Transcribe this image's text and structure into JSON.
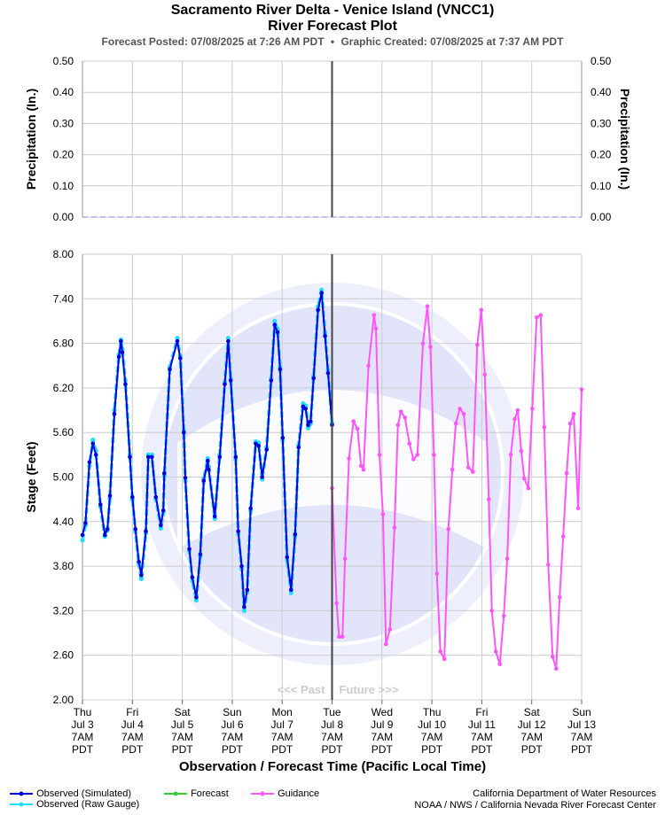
{
  "title_line1": "Sacramento River Delta - Venice Island (VNCC1)",
  "title_line2": "River Forecast Plot",
  "posted": "Forecast Posted: 07/08/2025 at 7:26 AM PDT",
  "created": "Graphic Created: 07/08/2025 at 7:37 AM PDT",
  "separator": "•",
  "past_label": "<<< Past",
  "future_label": "Future >>>",
  "legend": {
    "observed_sim": "Observed (Simulated)",
    "observed_raw": "Observed (Raw Gauge)",
    "forecast": "Forecast",
    "guidance": "Guidance"
  },
  "credits": {
    "line1": "California Department of Water Resources",
    "line2": "NOAA / NWS / California Nevada River Forecast Center"
  },
  "colors": {
    "observed_sim": "#0000dd",
    "observed_raw": "#22ddff",
    "forecast": "#33cc33",
    "guidance": "#ff55ff",
    "grid": "#cccccc",
    "now_line": "#444444"
  },
  "chart_data": [
    {
      "type": "line",
      "title": "Precipitation",
      "ylabel": "Precipitation (In.)",
      "ylabel_right": "Precipitation (In.)",
      "ylim": [
        0,
        0.5
      ],
      "yticks": [
        "0.00",
        "0.10",
        "0.20",
        "0.30",
        "0.40",
        "0.50"
      ],
      "series": [
        {
          "values": [
            0,
            0
          ]
        }
      ]
    },
    {
      "type": "line",
      "ylabel": "Stage (Feet)",
      "xlabel": "Observation / Forecast Time (Pacific Local Time)",
      "ylim": [
        2.0,
        8.0
      ],
      "xlim_days": [
        0,
        10
      ],
      "grid": true,
      "yticks": [
        "2.00",
        "2.60",
        "3.20",
        "3.80",
        "4.40",
        "5.00",
        "5.60",
        "6.20",
        "6.80",
        "7.40",
        "8.00"
      ],
      "xticks": [
        [
          "Thu",
          "Jul 3",
          "7AM",
          "PDT"
        ],
        [
          "Fri",
          "Jul 4",
          "7AM",
          "PDT"
        ],
        [
          "Sat",
          "Jul 5",
          "7AM",
          "PDT"
        ],
        [
          "Sun",
          "Jul 6",
          "7AM",
          "PDT"
        ],
        [
          "Mon",
          "Jul 7",
          "7AM",
          "PDT"
        ],
        [
          "Tue",
          "Jul 8",
          "7AM",
          "PDT"
        ],
        [
          "Wed",
          "Jul 9",
          "7AM",
          "PDT"
        ],
        [
          "Thu",
          "Jul 10",
          "7AM",
          "PDT"
        ],
        [
          "Fri",
          "Jul 11",
          "7AM",
          "PDT"
        ],
        [
          "Sat",
          "Jul 12",
          "7AM",
          "PDT"
        ],
        [
          "Sun",
          "Jul 13",
          "7AM",
          "PDT"
        ]
      ],
      "now_day": 5,
      "series": [
        {
          "name": "Observed (Simulated)",
          "x": [
            0,
            0.06,
            0.14,
            0.21,
            0.27,
            0.36,
            0.45,
            0.5,
            0.55,
            0.64,
            0.73,
            0.77,
            0.8,
            0.86,
            0.95,
            1.0,
            1.06,
            1.13,
            1.18,
            1.27,
            1.32,
            1.39,
            1.47,
            1.57,
            1.62,
            1.64,
            1.75,
            1.9,
            1.96,
            2.03,
            2.06,
            2.14,
            2.2,
            2.28,
            2.36,
            2.43,
            2.51,
            2.53,
            2.65,
            2.75,
            2.85,
            2.92,
            2.97,
            3.07,
            3.12,
            3.19,
            3.24,
            3.3,
            3.37,
            3.47,
            3.53,
            3.6,
            3.69,
            3.78,
            3.85,
            3.91,
            3.96,
            4.01,
            4.1,
            4.18,
            4.26,
            4.33,
            4.42,
            4.47,
            4.52,
            4.57,
            4.63,
            4.72,
            4.79,
            4.86,
            4.92,
            5.0
          ],
          "values": [
            4.22,
            4.38,
            5.2,
            5.45,
            5.3,
            4.63,
            4.22,
            4.3,
            4.75,
            5.85,
            6.62,
            6.83,
            6.68,
            6.25,
            5.27,
            4.73,
            4.3,
            3.86,
            3.68,
            4.27,
            5.27,
            5.27,
            4.73,
            4.35,
            4.55,
            5.05,
            6.45,
            6.83,
            6.6,
            5.6,
            4.99,
            4.03,
            3.65,
            3.38,
            3.96,
            4.95,
            5.22,
            5.1,
            4.47,
            5.27,
            6.25,
            6.83,
            6.3,
            5.27,
            4.27,
            3.8,
            3.25,
            3.48,
            4.58,
            5.45,
            5.42,
            5.0,
            5.37,
            6.3,
            7.05,
            6.95,
            6.45,
            5.53,
            3.92,
            3.48,
            4.23,
            5.4,
            5.95,
            5.92,
            5.7,
            5.75,
            6.33,
            7.25,
            7.48,
            6.9,
            6.4,
            5.7
          ]
        },
        {
          "name": "Observed (Raw Gauge)",
          "x": [
            0,
            0.06,
            0.14,
            0.21,
            0.27,
            0.36,
            0.45,
            0.5,
            0.55,
            0.64,
            0.73,
            0.77,
            0.8,
            0.86,
            0.95,
            1.0,
            1.06,
            1.13,
            1.18,
            1.27,
            1.32,
            1.39,
            1.47,
            1.57,
            1.62,
            1.64,
            1.75,
            1.9,
            1.96,
            2.03,
            2.06,
            2.14,
            2.2,
            2.28,
            2.36,
            2.43,
            2.51,
            2.53,
            2.65,
            2.75,
            2.85,
            2.92,
            2.97,
            3.07,
            3.12,
            3.19,
            3.24,
            3.3,
            3.37,
            3.47,
            3.53,
            3.6,
            3.69,
            3.78,
            3.85,
            3.91,
            3.96,
            4.01,
            4.1,
            4.18,
            4.26,
            4.33,
            4.42,
            4.47,
            4.52,
            4.57,
            4.63,
            4.72,
            4.79,
            4.86,
            4.92,
            5.0
          ],
          "values": [
            4.15,
            4.35,
            5.15,
            5.5,
            5.35,
            4.6,
            4.2,
            4.28,
            4.72,
            5.9,
            6.65,
            6.85,
            6.72,
            6.3,
            5.3,
            4.7,
            4.26,
            3.83,
            3.63,
            4.24,
            5.3,
            5.3,
            4.7,
            4.31,
            4.52,
            5.02,
            6.48,
            6.87,
            6.63,
            5.63,
            4.95,
            4.0,
            3.6,
            3.34,
            3.93,
            4.98,
            5.25,
            5.14,
            4.44,
            5.3,
            6.28,
            6.87,
            6.33,
            5.24,
            4.23,
            3.76,
            3.2,
            3.45,
            4.55,
            5.48,
            5.46,
            4.97,
            5.4,
            6.33,
            7.1,
            6.99,
            6.48,
            5.5,
            3.88,
            3.44,
            4.2,
            5.43,
            5.99,
            5.96,
            5.66,
            5.72,
            6.36,
            7.3,
            7.52,
            6.94,
            6.44,
            5.72
          ]
        },
        {
          "name": "Guidance",
          "x": [
            5.0,
            5.09,
            5.14,
            5.21,
            5.26,
            5.34,
            5.43,
            5.51,
            5.58,
            5.63,
            5.73,
            5.84,
            5.88,
            5.95,
            6.02,
            6.08,
            6.16,
            6.25,
            6.32,
            6.38,
            6.46,
            6.55,
            6.63,
            6.71,
            6.82,
            6.91,
            6.97,
            7.04,
            7.1,
            7.17,
            7.25,
            7.33,
            7.41,
            7.48,
            7.56,
            7.64,
            7.73,
            7.82,
            7.91,
            7.99,
            8.06,
            8.14,
            8.2,
            8.28,
            8.36,
            8.44,
            8.51,
            8.58,
            8.66,
            8.72,
            8.79,
            8.85,
            8.93,
            9.01,
            9.1,
            9.18,
            9.25,
            9.33,
            9.42,
            9.49,
            9.56,
            9.63,
            9.7,
            9.77,
            9.84,
            9.93,
            10.0
          ],
          "values": [
            4.85,
            3.3,
            2.85,
            2.85,
            3.9,
            5.25,
            5.75,
            5.65,
            5.15,
            5.1,
            6.5,
            7.18,
            7.0,
            5.3,
            4.5,
            2.75,
            2.95,
            4.32,
            5.7,
            5.88,
            5.8,
            5.45,
            5.24,
            5.3,
            6.8,
            7.3,
            6.75,
            5.3,
            3.7,
            2.65,
            2.55,
            4.3,
            5.1,
            5.72,
            5.92,
            5.85,
            5.13,
            5.07,
            6.78,
            7.25,
            6.38,
            4.7,
            3.2,
            2.65,
            2.48,
            3.13,
            3.9,
            5.3,
            5.78,
            5.9,
            5.35,
            4.98,
            4.85,
            5.92,
            7.15,
            7.18,
            5.67,
            3.82,
            2.58,
            2.42,
            3.38,
            4.2,
            5.05,
            5.72,
            5.85,
            4.58,
            6.18
          ]
        }
      ]
    }
  ]
}
